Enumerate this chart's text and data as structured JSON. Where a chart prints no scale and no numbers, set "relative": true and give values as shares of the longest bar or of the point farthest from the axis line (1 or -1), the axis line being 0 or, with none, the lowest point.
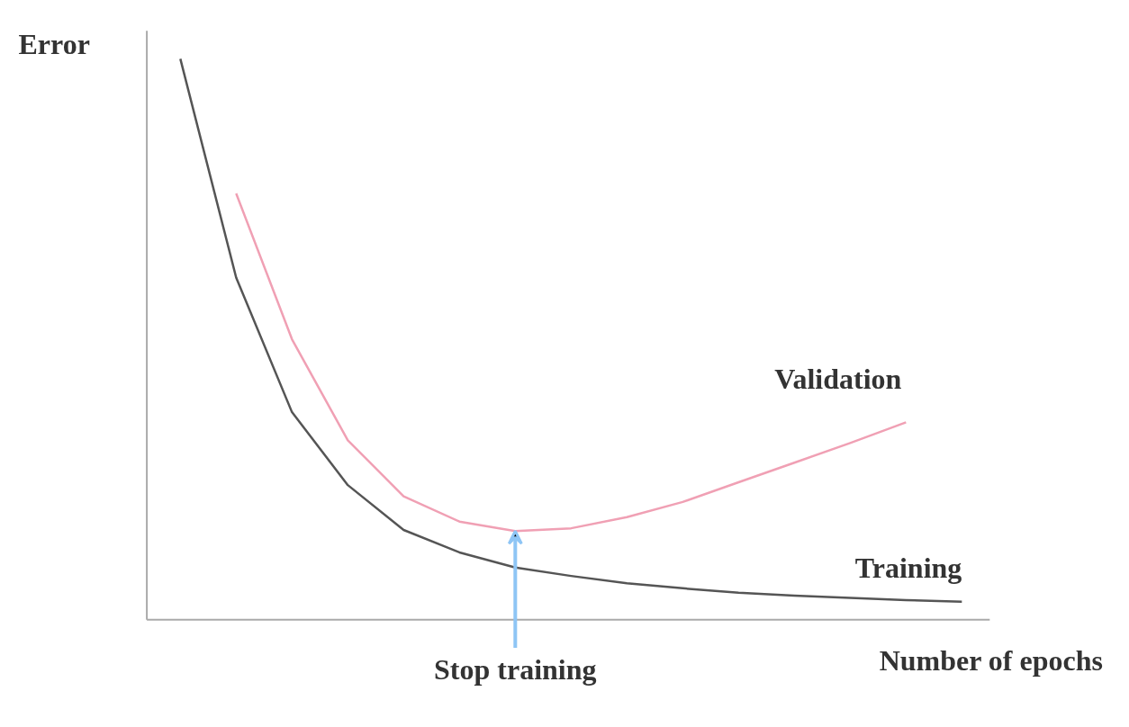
{
  "chart_data": {
    "type": "line",
    "relative": true,
    "xlabel": "Number of epochs",
    "ylabel": "Error",
    "tick_labels": false,
    "grid": false,
    "marker": "none",
    "line_style": "solid",
    "categories": [
      null,
      null,
      null,
      null,
      null,
      null,
      null,
      null,
      null,
      null,
      null,
      null,
      null,
      null,
      null
    ],
    "series": [
      {
        "name": "Validation",
        "color": "#f0a0b4",
        "values": [
          null,
          0.76,
          0.5,
          0.32,
          0.22,
          0.175,
          0.158,
          0.163,
          0.183,
          0.21,
          0.245,
          0.28,
          0.315,
          0.352,
          null
        ]
      },
      {
        "name": "Training",
        "color": "#555555",
        "values": [
          1.0,
          0.61,
          0.37,
          0.24,
          0.16,
          0.12,
          0.093,
          0.078,
          0.065,
          0.056,
          0.048,
          0.043,
          0.039,
          0.035,
          0.032
        ]
      }
    ],
    "annotations": [
      {
        "text": "Stop training",
        "y": 0.158
      }
    ]
  }
}
